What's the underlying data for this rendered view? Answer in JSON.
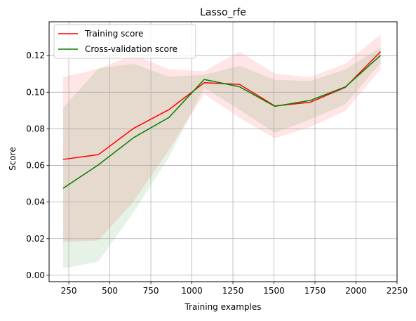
{
  "chart_data": {
    "type": "line",
    "title": "Lasso_rfe",
    "xlabel": "Training examples",
    "ylabel": "Score",
    "xlim": [
      130,
      2250
    ],
    "ylim": [
      -0.0035,
      0.1385
    ],
    "xticks": [
      250,
      500,
      750,
      1000,
      1250,
      1500,
      1750,
      2000,
      2250
    ],
    "yticks": [
      0.0,
      0.02,
      0.04,
      0.06,
      0.08,
      0.1,
      0.12
    ],
    "ytick_labels": [
      "0.00",
      "0.02",
      "0.04",
      "0.06",
      "0.08",
      "0.10",
      "0.12"
    ],
    "grid": true,
    "legend_position": "upper-left",
    "x": [
      215,
      430,
      645,
      860,
      1075,
      1290,
      1505,
      1720,
      1935,
      2150
    ],
    "series": [
      {
        "name": "Training score",
        "color": "#ff0000",
        "band_color": "#ff0000",
        "values": [
          0.0633,
          0.0659,
          0.0803,
          0.0905,
          0.1052,
          0.1043,
          0.0925,
          0.0945,
          0.1027,
          0.1222
        ],
        "band_lower": [
          0.0183,
          0.019,
          0.0403,
          0.0685,
          0.099,
          0.086,
          0.0748,
          0.081,
          0.0898,
          0.1125
        ],
        "band_upper": [
          0.1083,
          0.1128,
          0.1205,
          0.1125,
          0.1115,
          0.1222,
          0.1102,
          0.1082,
          0.1156,
          0.1318
        ]
      },
      {
        "name": "Cross-validation score",
        "color": "#008000",
        "band_color": "#008000",
        "values": [
          0.0475,
          0.0603,
          0.0752,
          0.0862,
          0.107,
          0.103,
          0.0923,
          0.0955,
          0.1029,
          0.1202
        ],
        "band_lower": [
          0.0037,
          0.0075,
          0.0345,
          0.0645,
          0.1025,
          0.0905,
          0.0778,
          0.0851,
          0.0935,
          0.116
        ],
        "band_upper": [
          0.0915,
          0.113,
          0.1155,
          0.1085,
          0.1095,
          0.1145,
          0.1068,
          0.1061,
          0.1125,
          0.1245
        ]
      }
    ]
  }
}
